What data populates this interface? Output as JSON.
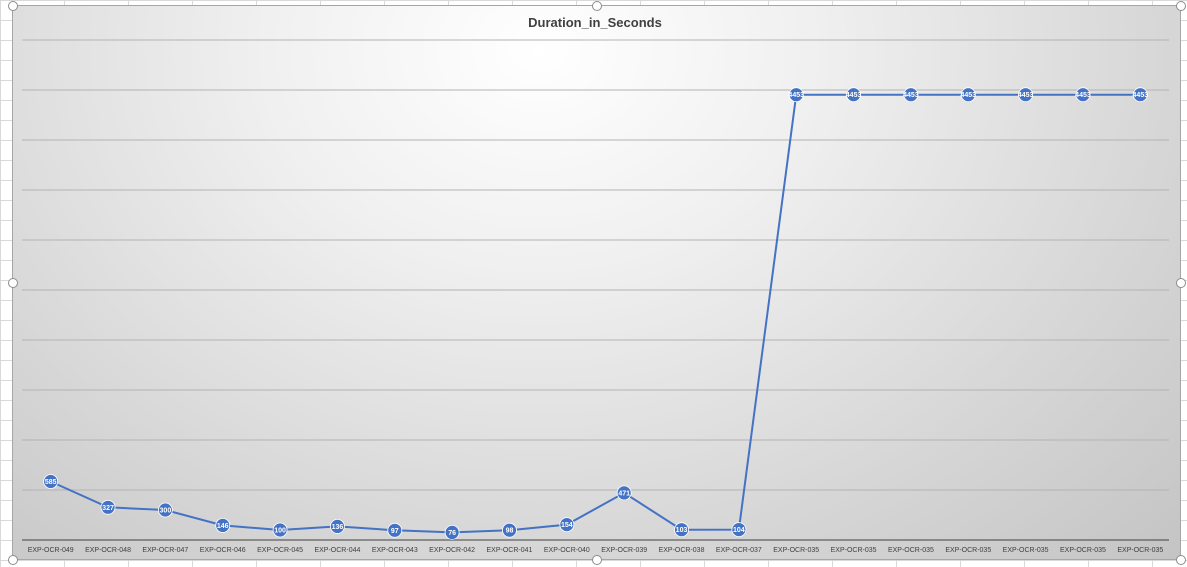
{
  "chart_data": {
    "type": "line",
    "title": "Duration_in_Seconds",
    "categories": [
      "EXP-OCR-049",
      "EXP-OCR-048",
      "EXP-OCR-047",
      "EXP-OCR-046",
      "EXP-OCR-045",
      "EXP-OCR-044",
      "EXP-OCR-043",
      "EXP-OCR-042",
      "EXP-OCR-041",
      "EXP-OCR-040",
      "EXP-OCR-039",
      "EXP-OCR-038",
      "EXP-OCR-037",
      "EXP-OCR-035",
      "EXP-OCR-035",
      "EXP-OCR-035",
      "EXP-OCR-035",
      "EXP-OCR-035",
      "EXP-OCR-035",
      "EXP-OCR-035"
    ],
    "series": [
      {
        "values": [
          585,
          327,
          300,
          146,
          100,
          136,
          97,
          76,
          98,
          154,
          471,
          103,
          104,
          4453,
          4453,
          4453,
          4453,
          4453,
          4453,
          4453
        ],
        "labels": [
          "585",
          "327",
          "300",
          "146",
          "100",
          "136",
          "97",
          "76",
          "98",
          "154",
          "471",
          "103",
          "104",
          "4453",
          "4453",
          "4453",
          "4453",
          "4453",
          "4453",
          "4453"
        ],
        "color": "#4472c4"
      }
    ],
    "ylim": [
      0,
      5000
    ],
    "grid": true,
    "legend": "none",
    "xlabel": "",
    "ylabel": ""
  }
}
